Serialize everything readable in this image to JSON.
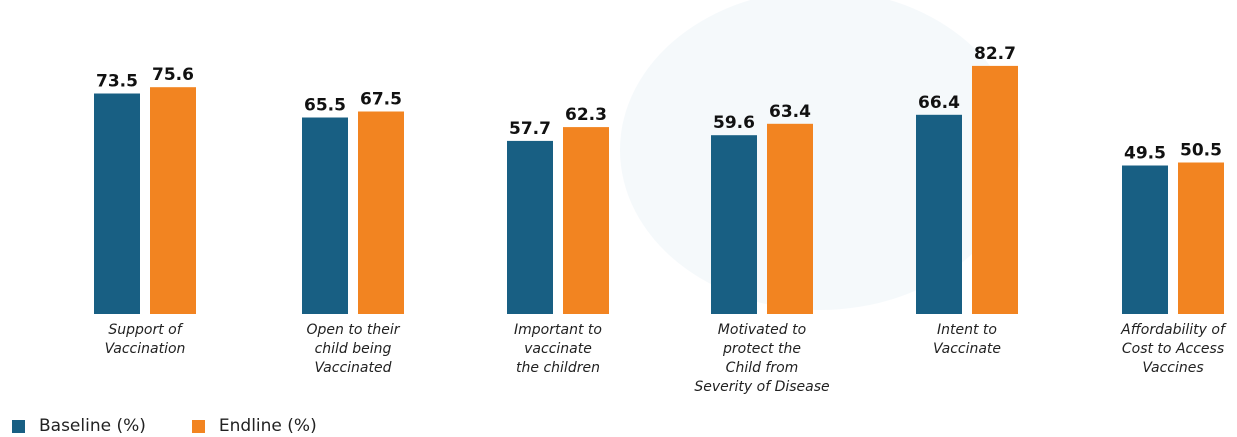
{
  "colors": {
    "baseline": "#185f83",
    "endline": "#f28421",
    "background_blob": "#eef5f8"
  },
  "chart_data": {
    "type": "bar",
    "categories": [
      [
        "Support of",
        "Vaccination"
      ],
      [
        "Open to their",
        "child being",
        "Vaccinated"
      ],
      [
        "Important to",
        "vaccinate",
        "the children"
      ],
      [
        "Motivated to",
        "protect the",
        "Child from",
        "Severity of Disease"
      ],
      [
        "Intent to",
        "Vaccinate"
      ],
      [
        "Affordability of",
        "Cost to Access",
        "Vaccines"
      ]
    ],
    "series": [
      {
        "name": "Baseline (%)",
        "values": [
          73.5,
          65.5,
          57.7,
          59.6,
          66.4,
          49.5
        ]
      },
      {
        "name": "Endline (%)",
        "values": [
          75.6,
          67.5,
          62.3,
          63.4,
          82.7,
          50.5
        ]
      }
    ],
    "title": "",
    "xlabel": "",
    "ylabel": "",
    "ylim": [
      0,
      85
    ],
    "grid": false,
    "legend_position": "bottom-left"
  }
}
